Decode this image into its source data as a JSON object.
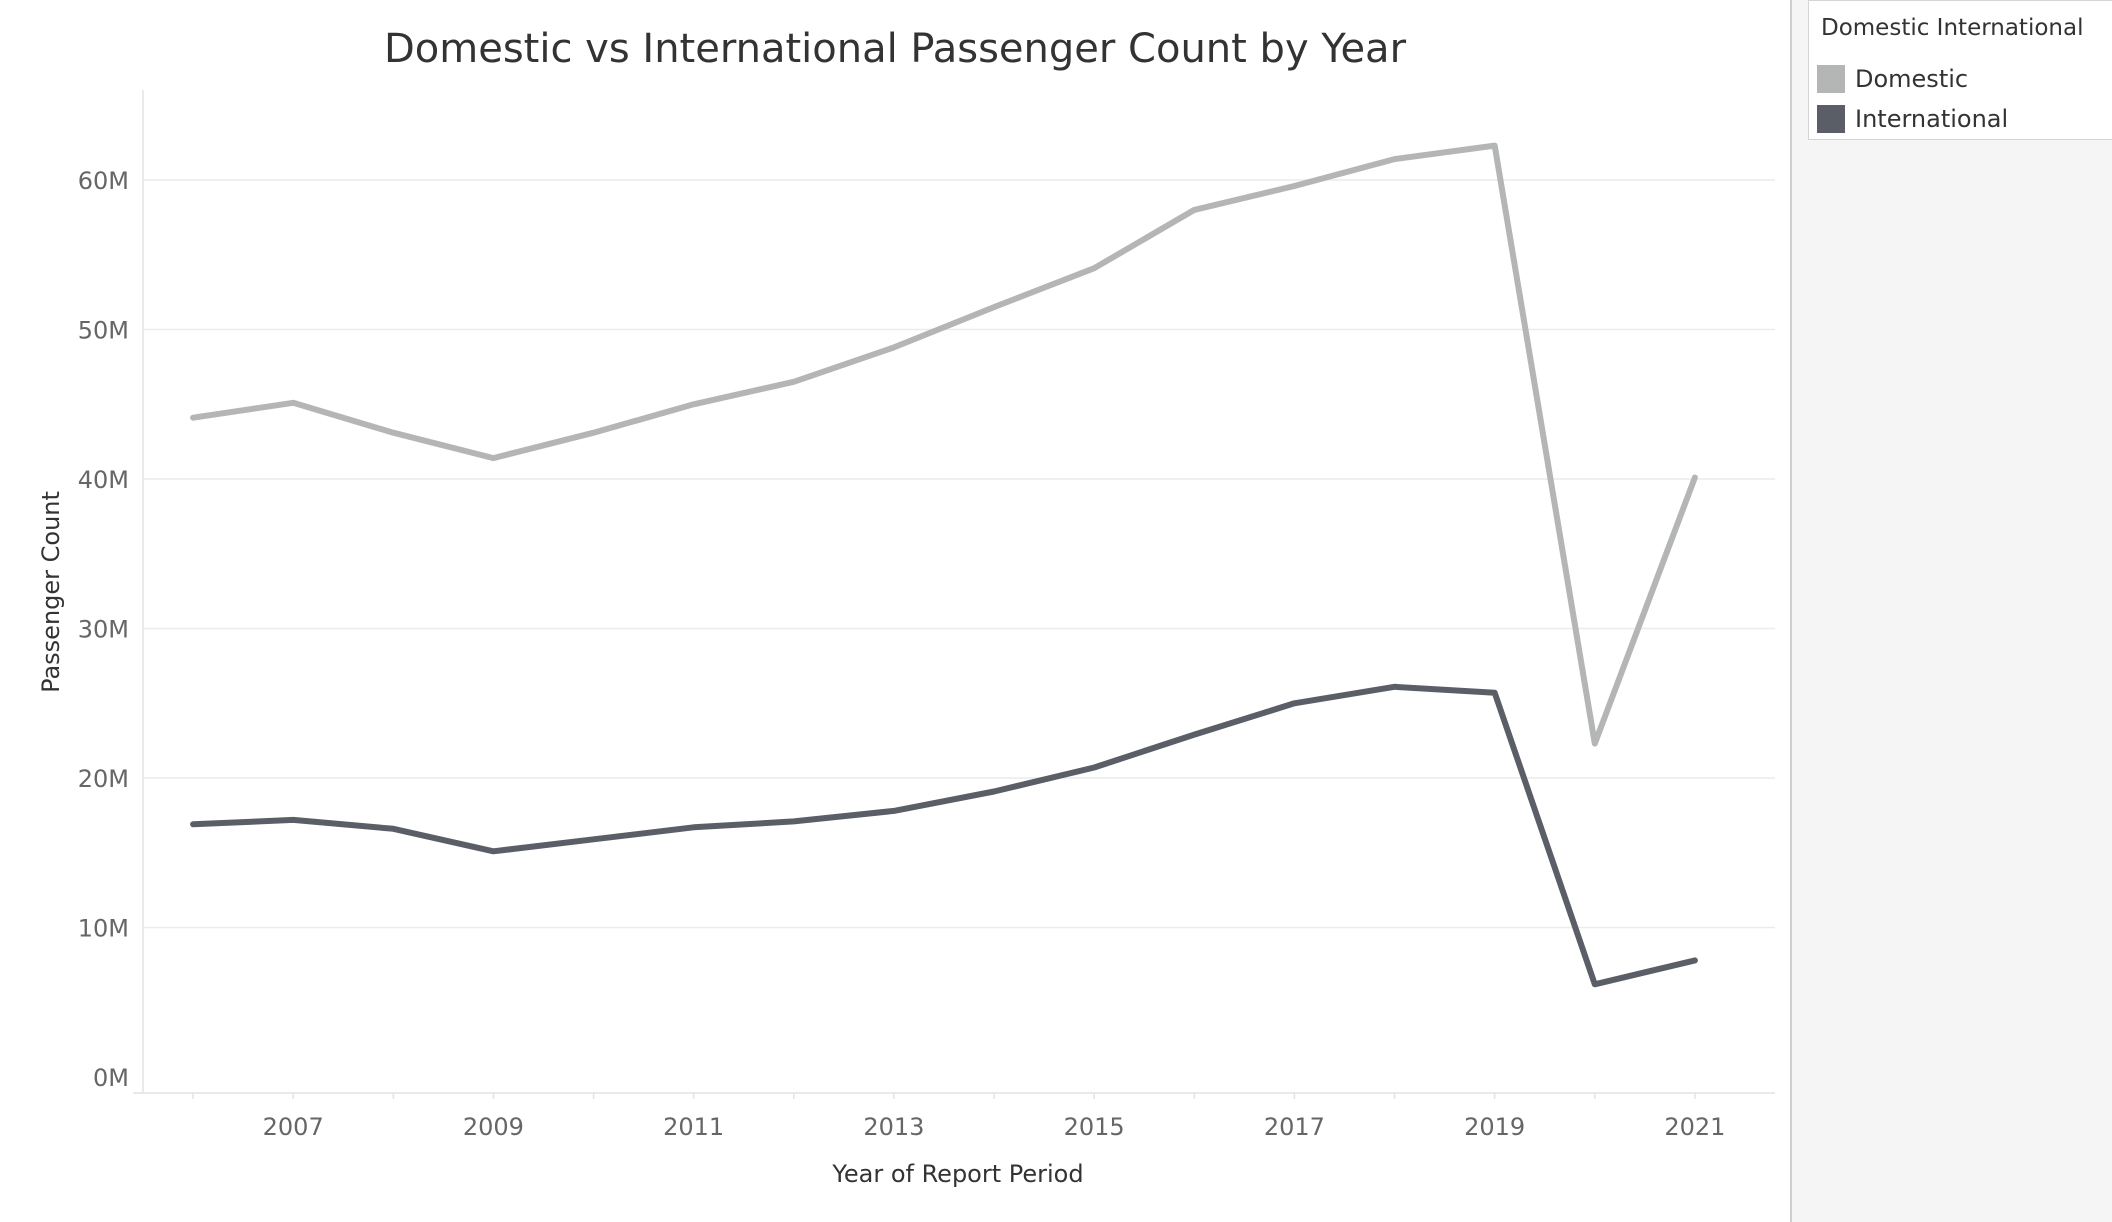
{
  "legend": {
    "title": "Domestic International",
    "items": [
      {
        "label": "Domestic",
        "color": "#b4b5b5"
      },
      {
        "label": "International",
        "color": "#5a5e66"
      }
    ]
  },
  "chart_data": {
    "type": "line",
    "title": "Domestic vs International Passenger Count by Year",
    "xlabel": "Year of Report Period",
    "ylabel": "Passenger Count",
    "x": [
      2006,
      2007,
      2008,
      2009,
      2010,
      2011,
      2012,
      2013,
      2014,
      2015,
      2016,
      2017,
      2018,
      2019,
      2020,
      2021
    ],
    "x_ticks": [
      "2007",
      "2009",
      "2011",
      "2013",
      "2015",
      "2017",
      "2019",
      "2021"
    ],
    "y_ticks": [
      "0M",
      "10M",
      "20M",
      "30M",
      "40M",
      "50M",
      "60M"
    ],
    "ylim": [
      0,
      65000000
    ],
    "grid": true,
    "legend_position": "top-right",
    "series": [
      {
        "name": "Domestic",
        "color": "#b4b5b5",
        "values": [
          44100000,
          45100000,
          43100000,
          41400000,
          43100000,
          45000000,
          46500000,
          48800000,
          51500000,
          54100000,
          58000000,
          59600000,
          61400000,
          62300000,
          22300000,
          40100000
        ]
      },
      {
        "name": "International",
        "color": "#5a5e66",
        "values": [
          16900000,
          17200000,
          16600000,
          15100000,
          15900000,
          16700000,
          17100000,
          17800000,
          19100000,
          20700000,
          22900000,
          25000000,
          26100000,
          25700000,
          6200000,
          7800000
        ]
      }
    ]
  }
}
